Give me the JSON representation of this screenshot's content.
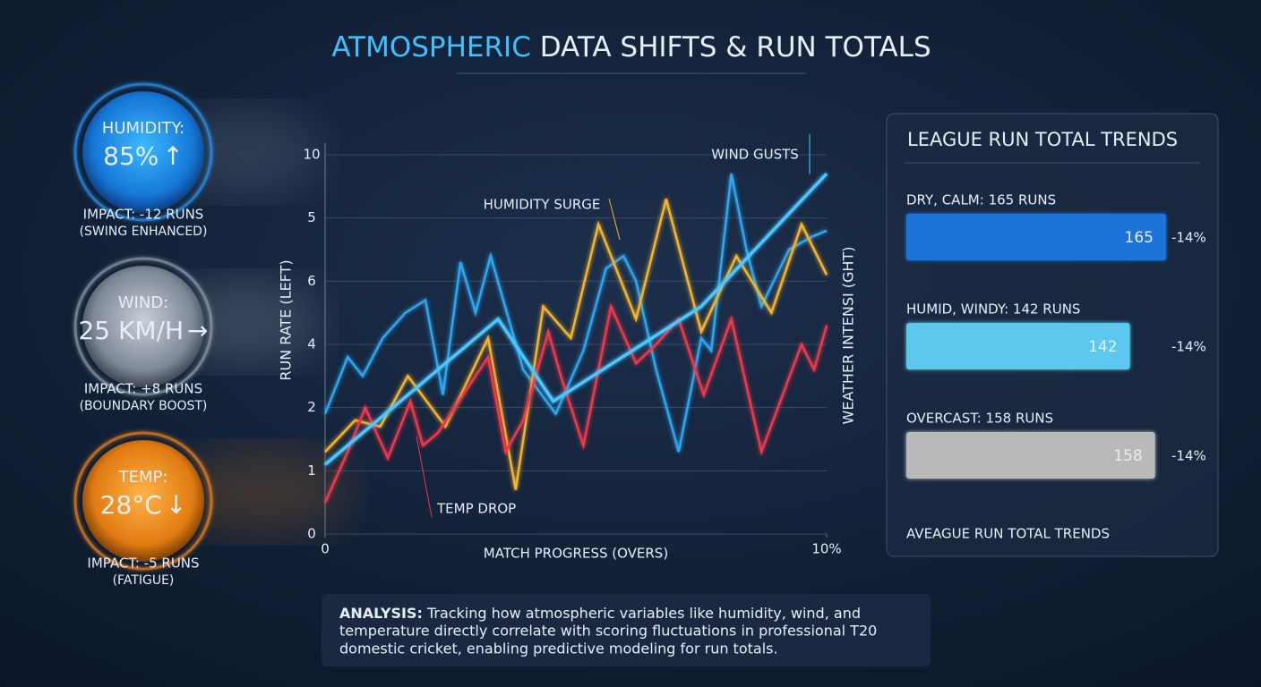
{
  "header": {
    "title_highlight": "ATMOSPHERIC",
    "title_rest": "DATA SHIFTS & RUN TOTALS"
  },
  "gauges": [
    {
      "label": "HUMIDITY:",
      "reading": "85%",
      "arrow": "↑",
      "impact": "IMPACT: -12 RUNS",
      "note": "(SWING ENHANCED)"
    },
    {
      "label": "WIND:",
      "reading": "25 KM/H",
      "arrow": "→",
      "impact": "IMPACT: +8 RUNS",
      "note": "(BOUNDARY BOOST)"
    },
    {
      "label": "TEMP:",
      "reading": "28°C",
      "arrow": "↓",
      "impact": "IMPACT: -5 RUNS",
      "note": "(FATIGUE)"
    }
  ],
  "chart_data": [
    {
      "type": "line",
      "y_label": "RUN RATE (LEFT)",
      "y2_label": "WEATHER INTENSI (GHT)",
      "x_label": "MATCH PROGRESS (OVERS)",
      "annotations": [
        "WIND GUSTS",
        "HUMIDITY SURGE",
        "TEMP DROP"
      ],
      "xlim": [
        0,
        20
      ],
      "xticks": [
        0,
        {
          "value": 20,
          "label": "10%"
        }
      ],
      "ylim": [
        0,
        6
      ],
      "yticks": [
        0,
        1,
        2,
        {
          "value": 3,
          "label": "4"
        },
        {
          "value": 4,
          "label": "6"
        },
        {
          "value": 5,
          "label": "5"
        },
        {
          "value": 6,
          "label": "10"
        }
      ],
      "grid": true,
      "series": [
        {
          "color": "#2ea6f0",
          "x": [
            0,
            0.9,
            1.5,
            2.3,
            3.2,
            4.0,
            4.7,
            5.4,
            6.0,
            6.6,
            7.9,
            9.2,
            10.3,
            11.2,
            11.9,
            12.4,
            13.2,
            14.1,
            15.0,
            15.4,
            16.2,
            16.8,
            17.4,
            18.5,
            19.4,
            20
          ],
          "values": [
            1.9,
            2.8,
            2.5,
            3.1,
            3.5,
            3.7,
            2.2,
            4.3,
            3.5,
            4.4,
            2.6,
            1.9,
            2.9,
            4.2,
            4.4,
            4.0,
            2.6,
            1.3,
            3.1,
            2.9,
            5.7,
            4.5,
            3.6,
            4.5,
            4.7,
            4.8
          ]
        },
        {
          "color": "#f5b42e",
          "x": [
            0,
            1.2,
            2.2,
            3.3,
            4.8,
            6.5,
            7.6,
            8.7,
            9.8,
            10.9,
            12.4,
            13.6,
            15.0,
            16.4,
            17.8,
            19.0,
            20
          ],
          "values": [
            1.3,
            1.8,
            1.7,
            2.5,
            1.7,
            3.1,
            0.7,
            3.6,
            3.1,
            4.9,
            3.4,
            5.3,
            3.2,
            4.4,
            3.5,
            4.9,
            4.1
          ]
        },
        {
          "color": "#f0384a",
          "x": [
            0,
            0.9,
            1.6,
            2.5,
            3.4,
            3.9,
            4.5,
            6.5,
            7.2,
            7.9,
            8.9,
            9.4,
            10.3,
            11.4,
            12.4,
            13.2,
            14.1,
            15.1,
            16.2,
            17.4,
            19.0,
            19.5,
            20
          ],
          "values": [
            0.5,
            1.3,
            2.0,
            1.2,
            2.1,
            1.4,
            1.6,
            2.8,
            1.3,
            1.8,
            3.2,
            2.5,
            1.4,
            3.6,
            2.7,
            3.0,
            3.4,
            2.2,
            3.4,
            1.3,
            3.0,
            2.6,
            3.3
          ]
        },
        {
          "color": "#4cc6ff",
          "x": [
            0,
            6.9,
            9.1,
            15.0,
            20
          ],
          "values": [
            1.1,
            3.4,
            2.1,
            3.6,
            5.7
          ]
        }
      ]
    },
    {
      "type": "hbar",
      "title": "LEAGUE RUN TOTAL TRENDS",
      "categories": [
        "DRY, CALM: 165 RUNS",
        "HUMID, WINDY: 142 RUNS",
        "OVERCAST: 158 RUNS"
      ],
      "values": [
        165,
        142,
        158
      ],
      "xlim": [
        0,
        165
      ],
      "colors": [
        "#1f73d8",
        "#5cc8ee",
        "#b9b9b9"
      ],
      "changes": [
        -14,
        -14,
        -14
      ],
      "change_labels": [
        "-14%",
        "-14%",
        "-14%"
      ],
      "footer": "AVEAGUE RUN TOTAL TRENDS"
    }
  ],
  "analysis": {
    "lead": "ANALYSIS:",
    "lines": [
      "Tracking how atmospheric variables like humidity, wind, and",
      "temperature directly correlate with scoring fluctuations in professional T20",
      "domestic cricket, enabling predictive modeling for run totals."
    ]
  }
}
